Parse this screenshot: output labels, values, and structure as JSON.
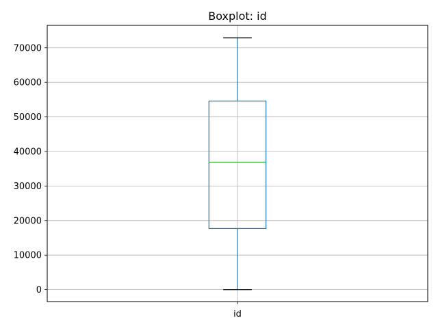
{
  "chart_data": {
    "type": "boxplot",
    "title": "Boxplot: id",
    "xlabel": "",
    "ylabel": "",
    "categories": [
      "id"
    ],
    "boxes": [
      {
        "category": "id",
        "whisker_low": 0,
        "q1": 17700,
        "median": 36900,
        "q3": 54600,
        "whisker_high": 72900
      }
    ],
    "ylim": [
      -3450,
      76500
    ],
    "yticks": [
      0,
      10000,
      20000,
      30000,
      40000,
      50000,
      60000,
      70000
    ],
    "grid": true,
    "colors": {
      "box": "#1f77b4",
      "median": "#2ca02c",
      "caps": "#000000",
      "grid": "#b0b0b0"
    }
  }
}
